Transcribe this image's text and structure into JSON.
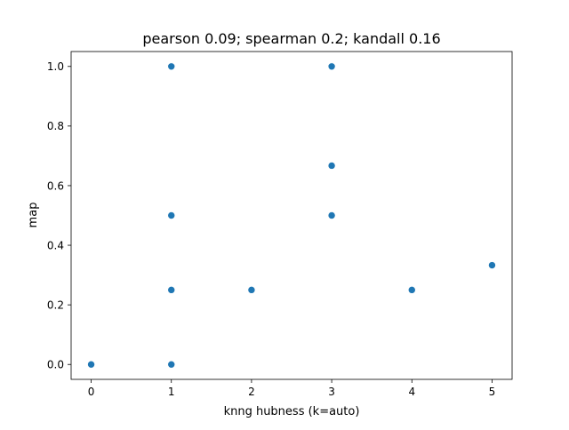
{
  "chart_data": {
    "type": "scatter",
    "title": "pearson 0.09; spearman 0.2; kandall 0.16",
    "xlabel": "knng hubness (k=auto)",
    "ylabel": "map",
    "xlim": [
      -0.25,
      5.25
    ],
    "ylim": [
      -0.05,
      1.05
    ],
    "x_ticks": [
      0,
      1,
      2,
      3,
      4,
      5
    ],
    "x_tick_labels": [
      "0",
      "1",
      "2",
      "3",
      "4",
      "5"
    ],
    "y_ticks": [
      0.0,
      0.2,
      0.4,
      0.6,
      0.8,
      1.0
    ],
    "y_tick_labels": [
      "0.0",
      "0.2",
      "0.4",
      "0.6",
      "0.8",
      "1.0"
    ],
    "grid": false,
    "legend": "none",
    "marker_color": "#1f77b4",
    "points": [
      {
        "x": 0,
        "y": 0.0
      },
      {
        "x": 1,
        "y": 0.0
      },
      {
        "x": 1,
        "y": 0.25
      },
      {
        "x": 1,
        "y": 0.5
      },
      {
        "x": 1,
        "y": 1.0
      },
      {
        "x": 2,
        "y": 0.25
      },
      {
        "x": 3,
        "y": 0.5
      },
      {
        "x": 3,
        "y": 0.667
      },
      {
        "x": 3,
        "y": 1.0
      },
      {
        "x": 4,
        "y": 0.25
      },
      {
        "x": 5,
        "y": 0.333
      }
    ]
  }
}
